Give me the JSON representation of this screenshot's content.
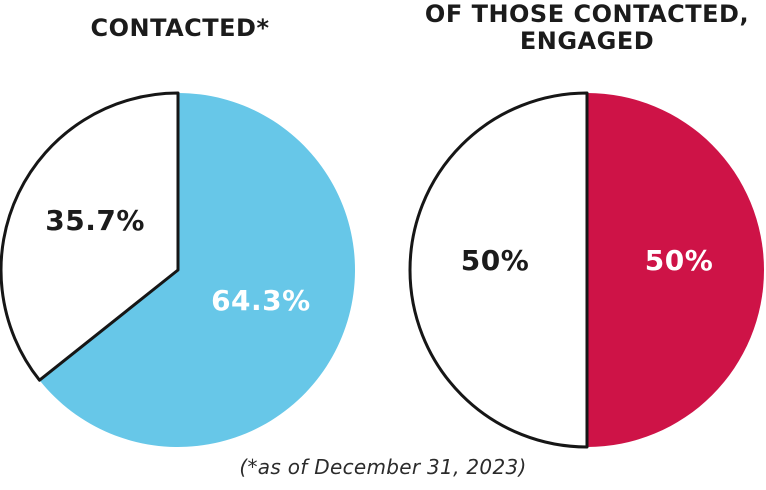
{
  "style": {
    "background": "#ffffff",
    "outline_color": "#161616",
    "outline_width": 3,
    "title_color": "#1b1b1b",
    "footnote_color": "#2b2b2b"
  },
  "footnote": "(*as of December 31, 2023)",
  "chart_data": [
    {
      "type": "pie",
      "title": "CONTACTED*",
      "labels": [
        "64.3%",
        "35.7%"
      ],
      "values": [
        64.3,
        35.7
      ],
      "colors": [
        "#67C7E8",
        "#FFFFFF"
      ],
      "label_colors": [
        "#FFFFFF",
        "#1b1b1b"
      ],
      "outlined": [
        false,
        true
      ],
      "start_angle_deg": 0,
      "direction": "clockwise",
      "legend": "none",
      "labels_position": "inside"
    },
    {
      "type": "pie",
      "title": "OF THOSE CONTACTED, ENGAGED",
      "labels": [
        "50%",
        "50%"
      ],
      "values": [
        50,
        50
      ],
      "colors": [
        "#CE1347",
        "#FFFFFF"
      ],
      "label_colors": [
        "#FFFFFF",
        "#1b1b1b"
      ],
      "outlined": [
        false,
        true
      ],
      "start_angle_deg": 0,
      "direction": "clockwise",
      "legend": "none",
      "labels_position": "inside"
    }
  ]
}
